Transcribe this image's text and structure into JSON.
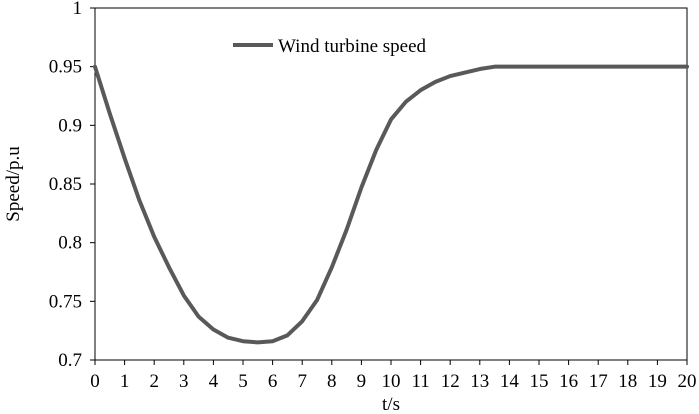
{
  "chart_data": {
    "type": "line",
    "title": "",
    "xlabel": "t/s",
    "ylabel": "Speed/p.u",
    "xlim": [
      0,
      20
    ],
    "ylim": [
      0.7,
      1.0
    ],
    "x_ticks": [
      "0",
      "1",
      "2",
      "3",
      "4",
      "5",
      "6",
      "7",
      "8",
      "9",
      "10",
      "11",
      "12",
      "13",
      "14",
      "15",
      "16",
      "17",
      "18",
      "19",
      "20"
    ],
    "y_ticks": [
      "0.7",
      "0.75",
      "0.8",
      "0.85",
      "0.9",
      "0.95",
      "1"
    ],
    "grid": false,
    "legend_position": "top",
    "series": [
      {
        "name": "Wind turbine speed",
        "color": "#595959",
        "x": [
          0,
          0.5,
          1,
          1.5,
          2,
          2.5,
          3,
          3.5,
          4,
          4.5,
          5,
          5.5,
          6,
          6.5,
          7,
          7.5,
          8,
          8.5,
          9,
          9.5,
          10,
          10.5,
          11,
          11.5,
          12,
          12.5,
          13,
          13.5,
          14,
          15,
          16,
          17,
          18,
          19,
          20
        ],
        "y": [
          0.95,
          0.91,
          0.872,
          0.836,
          0.805,
          0.779,
          0.755,
          0.737,
          0.726,
          0.719,
          0.716,
          0.715,
          0.716,
          0.721,
          0.733,
          0.751,
          0.779,
          0.811,
          0.847,
          0.879,
          0.905,
          0.92,
          0.93,
          0.937,
          0.942,
          0.945,
          0.948,
          0.95,
          0.95,
          0.95,
          0.95,
          0.95,
          0.95,
          0.95,
          0.95
        ]
      }
    ]
  }
}
